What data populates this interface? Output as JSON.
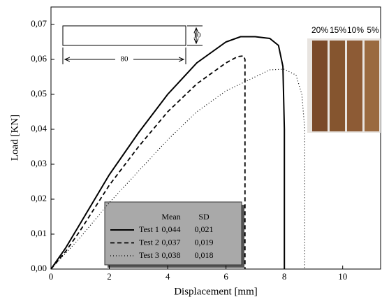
{
  "chart_data": {
    "type": "line",
    "xlabel": "Displacement [mm]",
    "ylabel": "Load [KN]",
    "xlim": [
      0,
      11.3
    ],
    "ylim": [
      0,
      0.075
    ],
    "xticks": [
      0,
      2,
      4,
      6,
      8,
      10
    ],
    "yticks": [
      {
        "value": 0,
        "label": "0,00"
      },
      {
        "value": 0.01,
        "label": "0,01"
      },
      {
        "value": 0.02,
        "label": "0,02"
      },
      {
        "value": 0.03,
        "label": "0,03"
      },
      {
        "value": 0.04,
        "label": "0,04"
      },
      {
        "value": 0.05,
        "label": "0,05"
      },
      {
        "value": 0.06,
        "label": "0,06"
      },
      {
        "value": 0.07,
        "label": "0,07"
      }
    ],
    "series": [
      {
        "name": "Test 1",
        "color": "#000000",
        "style": "solid",
        "x": [
          0,
          0.5,
          1,
          2,
          3,
          4,
          5,
          6,
          6.5,
          7,
          7.5,
          7.8,
          7.95,
          8.0,
          8.0
        ],
        "values": [
          0,
          0.006,
          0.013,
          0.027,
          0.039,
          0.05,
          0.059,
          0.065,
          0.0665,
          0.0665,
          0.066,
          0.064,
          0.058,
          0.04,
          0
        ]
      },
      {
        "name": "Test 2",
        "color": "#000000",
        "style": "dashed",
        "x": [
          0,
          0.5,
          1,
          2,
          3,
          4,
          5,
          6,
          6.4,
          6.6,
          6.65,
          6.65
        ],
        "values": [
          0,
          0.005,
          0.011,
          0.024,
          0.035,
          0.045,
          0.053,
          0.059,
          0.0608,
          0.061,
          0.06,
          0
        ]
      },
      {
        "name": "Test 3",
        "color": "#000000",
        "style": "dotted",
        "x": [
          0,
          1,
          2,
          3,
          4,
          5,
          6,
          7,
          7.5,
          8,
          8.4,
          8.6,
          8.7,
          8.7
        ],
        "values": [
          0,
          0.009,
          0.019,
          0.028,
          0.037,
          0.045,
          0.051,
          0.055,
          0.057,
          0.0572,
          0.0555,
          0.05,
          0.04,
          0
        ]
      }
    ],
    "stats_table": {
      "columns": [
        "Mean",
        "SD"
      ],
      "rows": [
        [
          "0,044",
          "0,021"
        ],
        [
          "0,037",
          "0,019"
        ],
        [
          "0,038",
          "0,018"
        ]
      ]
    },
    "specimen_dims": [
      "10",
      "80"
    ],
    "photo_labels": [
      "20%",
      "15%",
      "10%",
      "5%"
    ]
  }
}
